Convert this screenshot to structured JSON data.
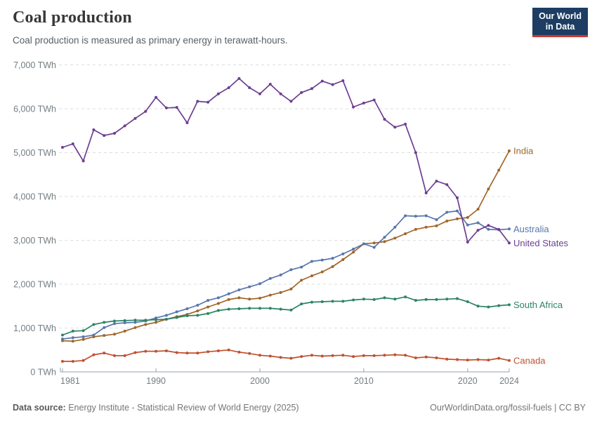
{
  "header": {
    "title": "Coal production",
    "subtitle": "Coal production is measured as primary energy in terawatt-hours.",
    "logo": {
      "line1": "Our World",
      "line2": "in Data"
    }
  },
  "footer": {
    "source_label": "Data source:",
    "source_text": " Energy Institute - Statistical Review of World Energy (2025)",
    "link_text": "OurWorldinData.org/fossil-fuels",
    "separator": " | ",
    "license": "CC BY"
  },
  "colors": {
    "grid": "#dddddd",
    "axis": "#999faf",
    "tick_text": "#737d83",
    "logo_bg": "#1d3d63",
    "logo_underline": "#cb3a32"
  },
  "chart_data": {
    "type": "line",
    "title": "Coal production",
    "unit": "TWh",
    "xlim": [
      1981,
      2024
    ],
    "ylim": [
      0,
      7000
    ],
    "x_ticks": [
      1981,
      1990,
      2000,
      2010,
      2020,
      2024
    ],
    "y_ticks": [
      0,
      1000,
      2000,
      3000,
      4000,
      5000,
      6000,
      7000
    ],
    "grid": "horizontal-dashed",
    "legend_position": "right-of-line-end",
    "x": [
      1981,
      1982,
      1983,
      1984,
      1985,
      1986,
      1987,
      1988,
      1989,
      1990,
      1991,
      1992,
      1993,
      1994,
      1995,
      1996,
      1997,
      1998,
      1999,
      2000,
      2001,
      2002,
      2003,
      2004,
      2005,
      2006,
      2007,
      2008,
      2009,
      2010,
      2011,
      2012,
      2013,
      2014,
      2015,
      2016,
      2017,
      2018,
      2019,
      2020,
      2021,
      2022,
      2023,
      2024
    ],
    "series": [
      {
        "name": "India",
        "color": "#a0662a",
        "values": [
          710,
          700,
          740,
          800,
          830,
          860,
          930,
          1010,
          1080,
          1130,
          1200,
          1260,
          1310,
          1390,
          1480,
          1560,
          1650,
          1690,
          1660,
          1680,
          1750,
          1810,
          1890,
          2090,
          2190,
          2280,
          2400,
          2560,
          2730,
          2920,
          2940,
          2970,
          3050,
          3150,
          3250,
          3300,
          3330,
          3440,
          3490,
          3520,
          3710,
          4170,
          4600,
          5040
        ]
      },
      {
        "name": "Australia",
        "color": "#5876ab",
        "values": [
          750,
          780,
          800,
          840,
          1010,
          1100,
          1120,
          1130,
          1160,
          1230,
          1290,
          1370,
          1440,
          1520,
          1630,
          1690,
          1780,
          1870,
          1940,
          2010,
          2130,
          2210,
          2330,
          2390,
          2520,
          2550,
          2590,
          2690,
          2800,
          2920,
          2840,
          3070,
          3300,
          3560,
          3550,
          3560,
          3470,
          3640,
          3670,
          3350,
          3400,
          3250,
          3240,
          3260
        ]
      },
      {
        "name": "United States",
        "color": "#6d3e91",
        "values": [
          5120,
          5200,
          4810,
          5520,
          5390,
          5440,
          5610,
          5780,
          5940,
          6260,
          6020,
          6030,
          5680,
          6170,
          6150,
          6340,
          6480,
          6690,
          6480,
          6340,
          6560,
          6340,
          6170,
          6370,
          6460,
          6630,
          6550,
          6640,
          6040,
          6130,
          6200,
          5760,
          5580,
          5650,
          5000,
          4080,
          4350,
          4270,
          3970,
          2960,
          3230,
          3340,
          3250,
          2940
        ]
      },
      {
        "name": "South Africa",
        "color": "#2c8465",
        "values": [
          840,
          930,
          940,
          1080,
          1130,
          1160,
          1170,
          1180,
          1180,
          1190,
          1200,
          1240,
          1280,
          1290,
          1330,
          1400,
          1430,
          1440,
          1450,
          1450,
          1450,
          1430,
          1410,
          1550,
          1590,
          1600,
          1610,
          1610,
          1640,
          1660,
          1650,
          1690,
          1660,
          1710,
          1630,
          1650,
          1650,
          1660,
          1670,
          1600,
          1500,
          1480,
          1510,
          1530
        ]
      },
      {
        "name": "Canada",
        "color": "#c0512f",
        "values": [
          240,
          240,
          260,
          390,
          430,
          370,
          370,
          440,
          470,
          470,
          480,
          440,
          430,
          430,
          460,
          480,
          500,
          450,
          420,
          380,
          360,
          330,
          310,
          350,
          380,
          360,
          370,
          380,
          350,
          370,
          370,
          380,
          390,
          380,
          320,
          340,
          320,
          290,
          280,
          270,
          280,
          270,
          310,
          260
        ]
      }
    ]
  }
}
